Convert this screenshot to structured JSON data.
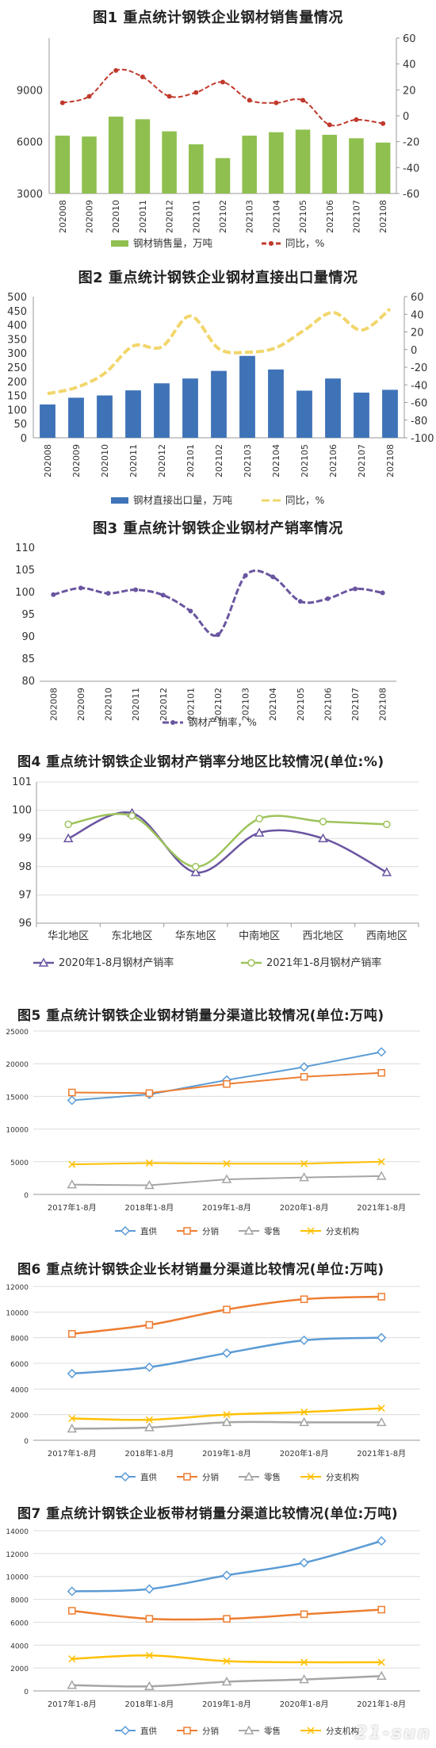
{
  "watermark": "21-sun",
  "chart_data": [
    {
      "id": "c1",
      "type": "bar+line",
      "title": "图1 重点统计钢铁企业钢材销售量情况",
      "categories": [
        "202008",
        "202009",
        "202010",
        "202011",
        "202012",
        "202101",
        "202102",
        "202103",
        "202104",
        "202105",
        "202106",
        "202107",
        "202108"
      ],
      "series": [
        {
          "name": "钢材销售量，万吨",
          "type": "bar",
          "axis": "left",
          "color": "#8fbf4f",
          "values": [
            6350,
            6300,
            7450,
            7300,
            6600,
            5850,
            5050,
            6350,
            6550,
            6700,
            6400,
            6200,
            5950
          ]
        },
        {
          "name": "同比，%",
          "type": "line",
          "axis": "right",
          "color": "#c0392b",
          "values": [
            10,
            15,
            35,
            30,
            15,
            18,
            26,
            12,
            10,
            12,
            -7,
            -3,
            -6
          ]
        }
      ],
      "left_axis": {
        "min": 3000,
        "max": 12000,
        "ticks": [
          3000,
          6000,
          9000
        ]
      },
      "right_axis": {
        "min": -60,
        "max": 60,
        "ticks": [
          -60,
          -40,
          -20,
          0,
          20,
          40,
          60
        ]
      }
    },
    {
      "id": "c2",
      "type": "bar+line",
      "title": "图2 重点统计钢铁企业钢材直接出口量情况",
      "categories": [
        "202008",
        "202009",
        "202010",
        "202011",
        "202012",
        "202101",
        "202102",
        "202103",
        "202104",
        "202105",
        "202106",
        "202107",
        "202108"
      ],
      "series": [
        {
          "name": "钢材直接出口量，万吨",
          "type": "bar",
          "axis": "left",
          "color": "#3f73b8",
          "values": [
            118,
            142,
            150,
            168,
            193,
            210,
            237,
            290,
            242,
            167,
            210,
            160,
            170
          ]
        },
        {
          "name": "同比，%",
          "type": "line",
          "axis": "right",
          "color": "#f1d66b",
          "values": [
            -50,
            -43,
            -27,
            4,
            3,
            38,
            1,
            -3,
            2,
            22,
            42,
            22,
            46
          ]
        }
      ],
      "left_axis": {
        "min": 0,
        "max": 500,
        "ticks": [
          0,
          50,
          100,
          150,
          200,
          250,
          300,
          350,
          400,
          450,
          500
        ]
      },
      "right_axis": {
        "min": -100,
        "max": 60,
        "ticks": [
          -100,
          -80,
          -60,
          -40,
          -20,
          0,
          20,
          40,
          60
        ]
      }
    },
    {
      "id": "c3",
      "type": "line",
      "title": "图3 重点统计钢铁企业钢材产销率情况",
      "categories": [
        "202008",
        "202009",
        "202010",
        "202011",
        "202012",
        "202101",
        "202102",
        "202103",
        "202104",
        "202105",
        "202106",
        "202107",
        "202108"
      ],
      "series": [
        {
          "name": "钢材产销率，%",
          "color": "#6a55a0",
          "values": [
            99.5,
            101.0,
            99.8,
            100.6,
            99.4,
            95.8,
            90.5,
            103.8,
            103.5,
            98.0,
            98.6,
            100.8,
            99.9
          ]
        }
      ],
      "left_axis": {
        "min": 80,
        "max": 110,
        "ticks": [
          80,
          85,
          90,
          95,
          100,
          105,
          110
        ]
      }
    },
    {
      "id": "c4",
      "type": "line",
      "title": "图4 重点统计钢铁企业钢材产销率分地区比较情况(单位:%)",
      "categories": [
        "华北地区",
        "东北地区",
        "华东地区",
        "中南地区",
        "西北地区",
        "西南地区"
      ],
      "series": [
        {
          "name": "2020年1-8月钢材产销率",
          "color": "#6a55a0",
          "marker": "triangle",
          "values": [
            99.0,
            99.9,
            97.8,
            99.2,
            99.0,
            97.8
          ]
        },
        {
          "name": "2021年1-8月钢材产销率",
          "color": "#9dc35a",
          "marker": "circle",
          "values": [
            99.5,
            99.8,
            98.0,
            99.7,
            99.6,
            99.5
          ]
        }
      ],
      "left_axis": {
        "min": 96,
        "max": 101,
        "ticks": [
          96,
          97,
          98,
          99,
          100,
          101
        ]
      }
    },
    {
      "id": "c5",
      "type": "line",
      "title": "图5 重点统计钢铁企业钢材销量分渠道比较情况(单位:万吨)",
      "categories": [
        "2017年1-8月",
        "2018年1-8月",
        "2019年1-8月",
        "2020年1-8月",
        "2021年1-8月"
      ],
      "series": [
        {
          "name": "直供",
          "color": "#5b9bd5",
          "marker": "diamond",
          "values": [
            14400,
            15300,
            17500,
            19500,
            21800
          ]
        },
        {
          "name": "分销",
          "color": "#ed7d31",
          "marker": "square",
          "values": [
            15600,
            15500,
            16900,
            18000,
            18600
          ]
        },
        {
          "name": "零售",
          "color": "#a5a5a5",
          "marker": "triangle",
          "values": [
            1500,
            1400,
            2300,
            2600,
            2800
          ]
        },
        {
          "name": "分支机构",
          "color": "#ffc000",
          "marker": "x",
          "values": [
            4600,
            4800,
            4700,
            4700,
            5000
          ]
        }
      ],
      "left_axis": {
        "min": 0,
        "max": 25000,
        "ticks": [
          0,
          5000,
          10000,
          15000,
          20000,
          25000
        ]
      }
    },
    {
      "id": "c6",
      "type": "line",
      "title": "图6 重点统计钢铁企业长材销量分渠道比较情况(单位:万吨)",
      "categories": [
        "2017年1-8月",
        "2018年1-8月",
        "2019年1-8月",
        "2020年1-8月",
        "2021年1-8月"
      ],
      "series": [
        {
          "name": "直供",
          "color": "#5b9bd5",
          "marker": "diamond",
          "values": [
            5200,
            5700,
            6800,
            7800,
            8000
          ]
        },
        {
          "name": "分销",
          "color": "#ed7d31",
          "marker": "square",
          "values": [
            8300,
            9000,
            10200,
            11000,
            11200
          ]
        },
        {
          "name": "零售",
          "color": "#a5a5a5",
          "marker": "triangle",
          "values": [
            900,
            1000,
            1400,
            1400,
            1400
          ]
        },
        {
          "name": "分支机构",
          "color": "#ffc000",
          "marker": "x",
          "values": [
            1700,
            1600,
            2000,
            2200,
            2500
          ]
        }
      ],
      "left_axis": {
        "min": 0,
        "max": 12000,
        "ticks": [
          0,
          2000,
          4000,
          6000,
          8000,
          10000,
          12000
        ]
      }
    },
    {
      "id": "c7",
      "type": "line",
      "title": "图7 重点统计钢铁企业板带材销量分渠道比较情况(单位:万吨)",
      "categories": [
        "2017年1-8月",
        "2018年1-8月",
        "2019年1-8月",
        "2020年1-8月",
        "2021年1-8月"
      ],
      "series": [
        {
          "name": "直供",
          "color": "#5b9bd5",
          "marker": "diamond",
          "values": [
            8700,
            8900,
            10100,
            11200,
            13100
          ]
        },
        {
          "name": "分销",
          "color": "#ed7d31",
          "marker": "square",
          "values": [
            7000,
            6300,
            6300,
            6700,
            7100
          ]
        },
        {
          "name": "零售",
          "color": "#a5a5a5",
          "marker": "triangle",
          "values": [
            500,
            400,
            800,
            1000,
            1300
          ]
        },
        {
          "name": "分支机构",
          "color": "#ffc000",
          "marker": "x",
          "values": [
            2800,
            3100,
            2600,
            2500,
            2500
          ]
        }
      ],
      "left_axis": {
        "min": 0,
        "max": 14000,
        "ticks": [
          0,
          2000,
          4000,
          6000,
          8000,
          10000,
          12000,
          14000
        ]
      }
    }
  ]
}
